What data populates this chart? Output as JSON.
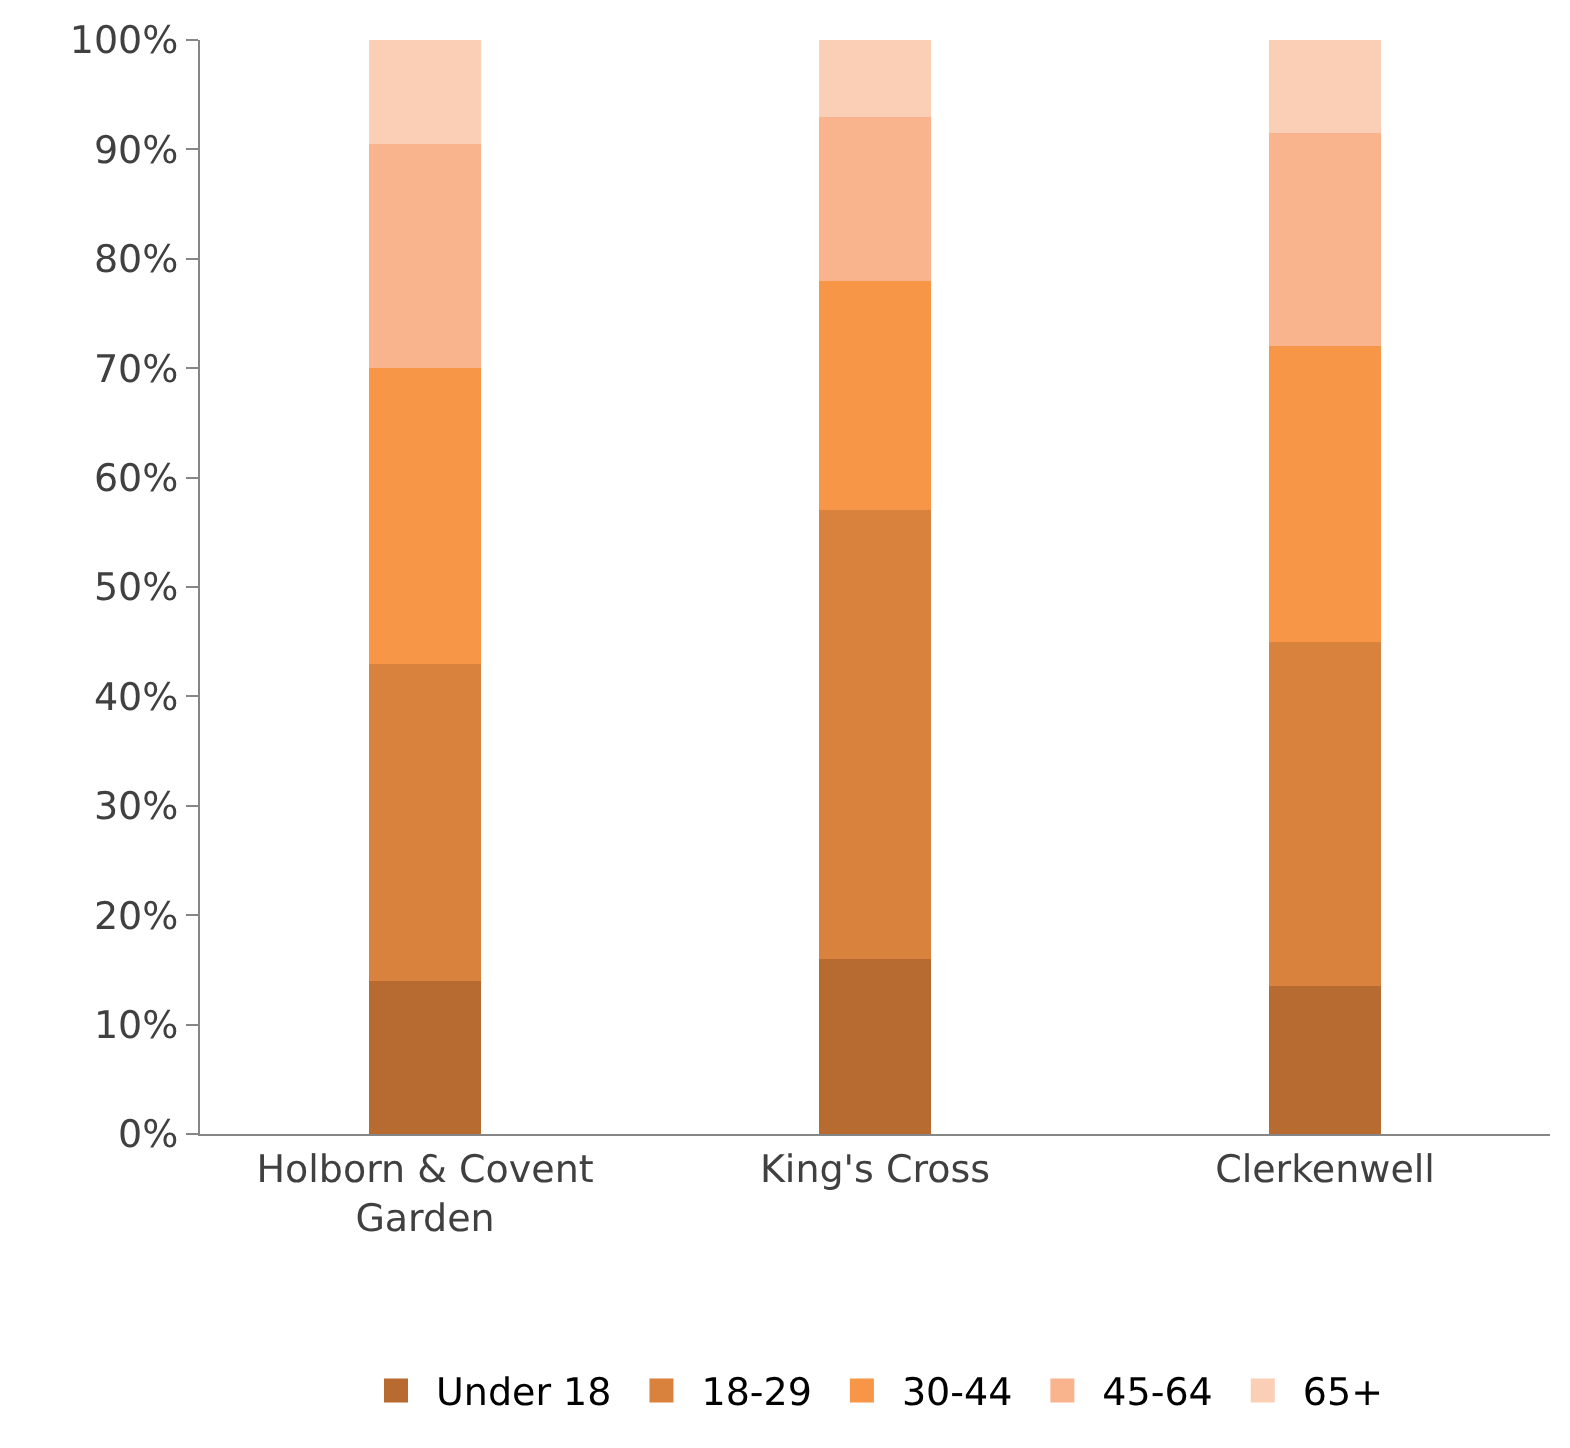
{
  "chart_data": {
    "type": "bar",
    "stacked": true,
    "categories": [
      "Holborn & Covent Garden",
      "King's Cross",
      "Clerkenwell"
    ],
    "series": [
      {
        "name": "Under 18",
        "color": "#b76b31",
        "values": [
          14,
          16,
          13.5
        ]
      },
      {
        "name": "18-29",
        "color": "#d9823e",
        "values": [
          29,
          41,
          31.5
        ]
      },
      {
        "name": "30-44",
        "color": "#f79646",
        "values": [
          27,
          21,
          27
        ]
      },
      {
        "name": "45-64",
        "color": "#f9b48e",
        "values": [
          20.5,
          15,
          19.5
        ]
      },
      {
        "name": "65+",
        "color": "#fbcfb6",
        "values": [
          9.5,
          7,
          8.5
        ]
      }
    ],
    "ylim": [
      0,
      100
    ],
    "yticks": [
      {
        "value": 0,
        "label": "0%"
      },
      {
        "value": 10,
        "label": "10%"
      },
      {
        "value": 20,
        "label": "20%"
      },
      {
        "value": 30,
        "label": "30%"
      },
      {
        "value": 40,
        "label": "40%"
      },
      {
        "value": 50,
        "label": "50%"
      },
      {
        "value": 60,
        "label": "60%"
      },
      {
        "value": 70,
        "label": "70%"
      },
      {
        "value": 80,
        "label": "80%"
      },
      {
        "value": 90,
        "label": "90%"
      },
      {
        "value": 100,
        "label": "100%"
      }
    ],
    "grid": false,
    "legend": "bottom"
  }
}
